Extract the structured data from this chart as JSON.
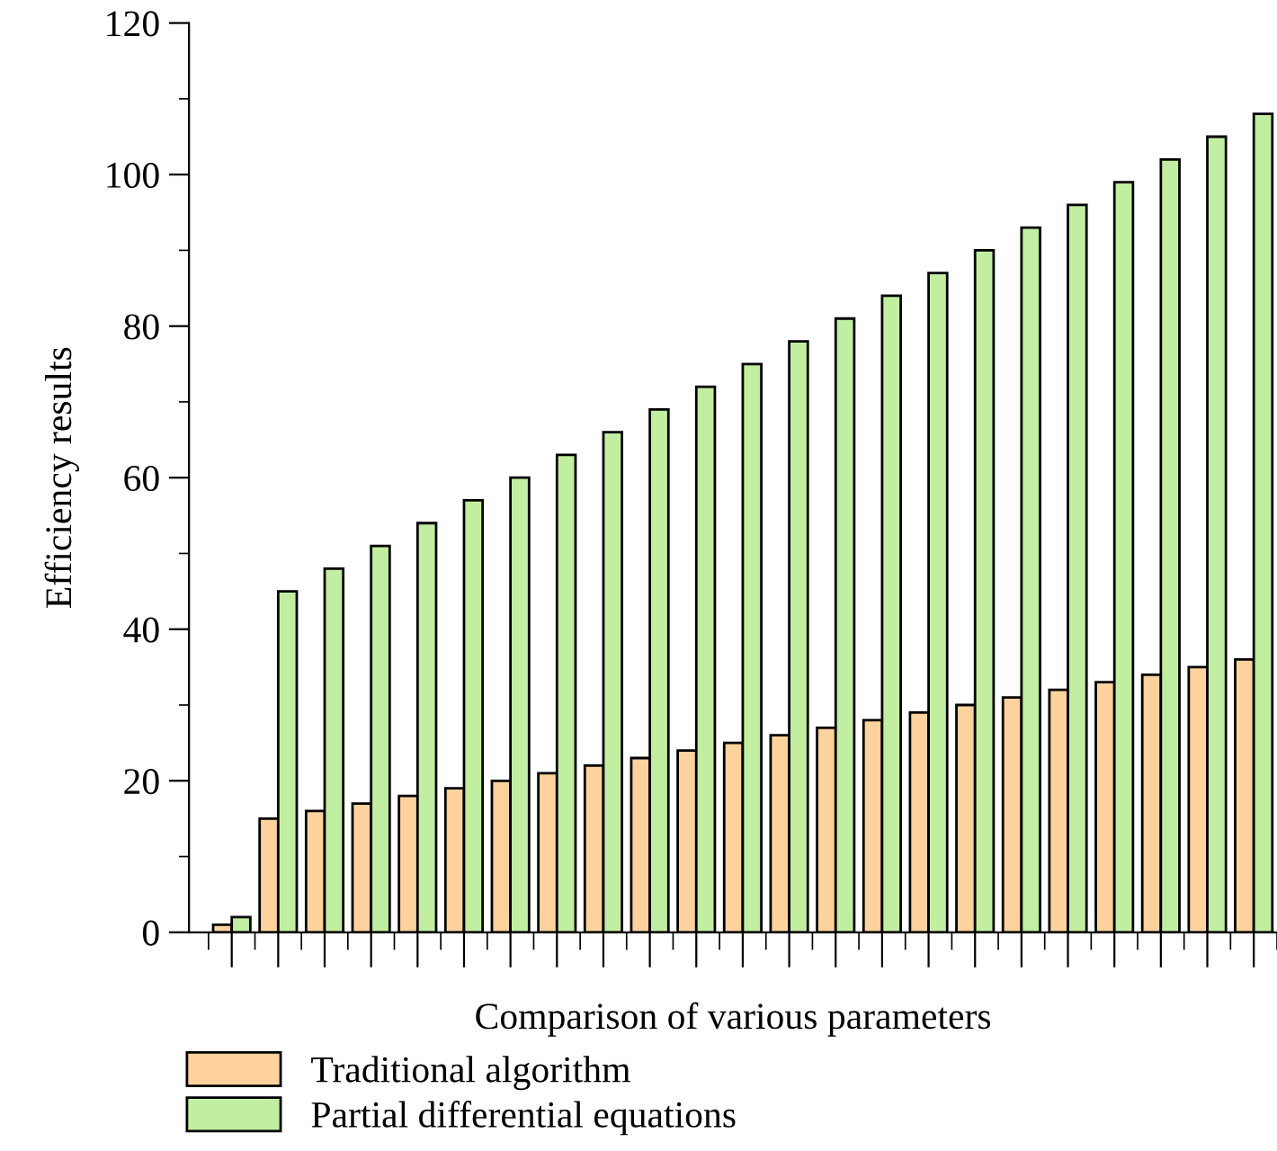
{
  "chart_data": {
    "type": "bar",
    "xlabel": "Comparison of various parameters",
    "ylabel": "Efficiency results",
    "categories": [
      null,
      null,
      null,
      null,
      null,
      null,
      null,
      null,
      null,
      null,
      null,
      null,
      null,
      null,
      null,
      null,
      null,
      null,
      null,
      null,
      null,
      null,
      null
    ],
    "series": [
      {
        "name": "Traditional algorithm",
        "color": "#fdd29d",
        "values": [
          1,
          15,
          16,
          17,
          18,
          19,
          20,
          21,
          22,
          23,
          24,
          25,
          26,
          27,
          28,
          29,
          30,
          31,
          32,
          33,
          34,
          35,
          36
        ]
      },
      {
        "name": "Partial differential equations",
        "color": "#c1eea1",
        "values": [
          2,
          45,
          48,
          51,
          54,
          57,
          60,
          63,
          66,
          69,
          72,
          75,
          78,
          81,
          84,
          87,
          90,
          93,
          96,
          99,
          102,
          105,
          108
        ]
      }
    ],
    "ylim": [
      0,
      120
    ],
    "yticks": [
      0,
      20,
      40,
      60,
      80,
      100,
      120
    ],
    "grid": false,
    "legend": "bottom"
  }
}
